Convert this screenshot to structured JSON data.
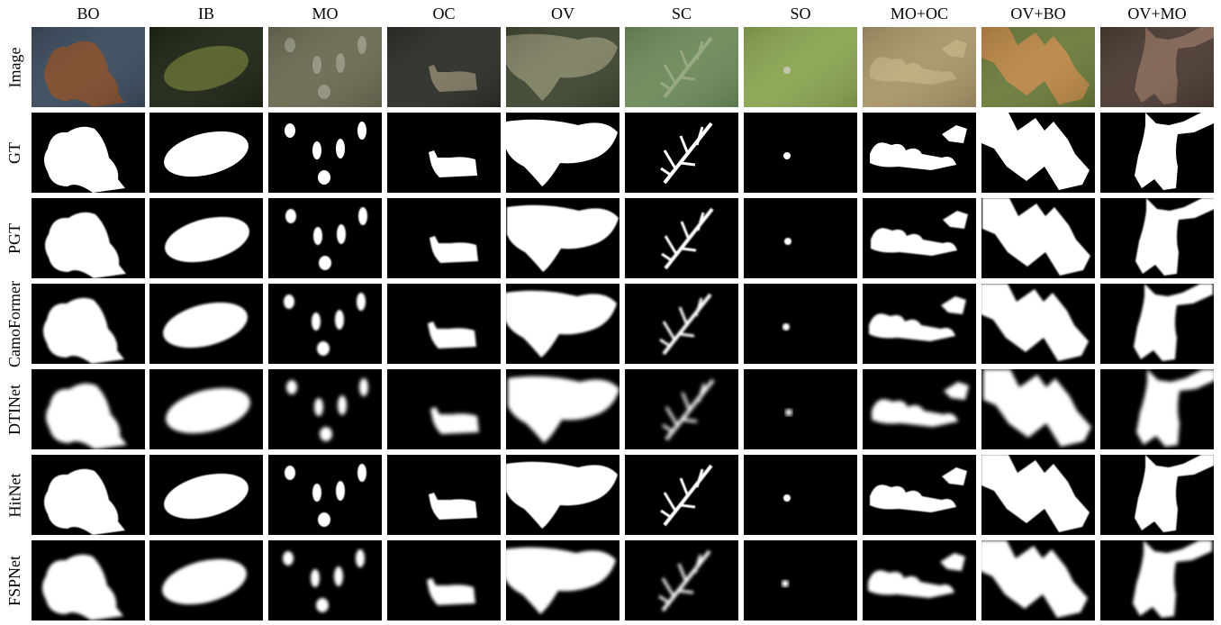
{
  "figure": {
    "column_headers": [
      "BO",
      "IB",
      "MO",
      "OC",
      "OV",
      "SC",
      "SO",
      "MO+OC",
      "OV+BO",
      "OV+MO"
    ],
    "row_headers": [
      "Image",
      "GT",
      "PGT",
      "CamoFormer",
      "DTINet",
      "HitNet",
      "FSPNet"
    ],
    "image_row_colors": [
      {
        "bg": "#3a4a5c",
        "fg": "#8a4a22"
      },
      {
        "bg": "#1c2414",
        "fg": "#5f6a2c"
      },
      {
        "bg": "#6a6a52",
        "fg": "#9a9a86"
      },
      {
        "bg": "#2a2e26",
        "fg": "#8a8068"
      },
      {
        "bg": "#3e4630",
        "fg": "#8a8a6a"
      },
      {
        "bg": "#6c8a5a",
        "fg": "#9aaa80"
      },
      {
        "bg": "#8aa450",
        "fg": "#c8c8b8"
      },
      {
        "bg": "#a89468",
        "fg": "#c2ae80"
      },
      {
        "bg": "#6a7a3a",
        "fg": "#c88a4a"
      },
      {
        "bg": "#4a3a32",
        "fg": "#8a6a58"
      }
    ]
  }
}
